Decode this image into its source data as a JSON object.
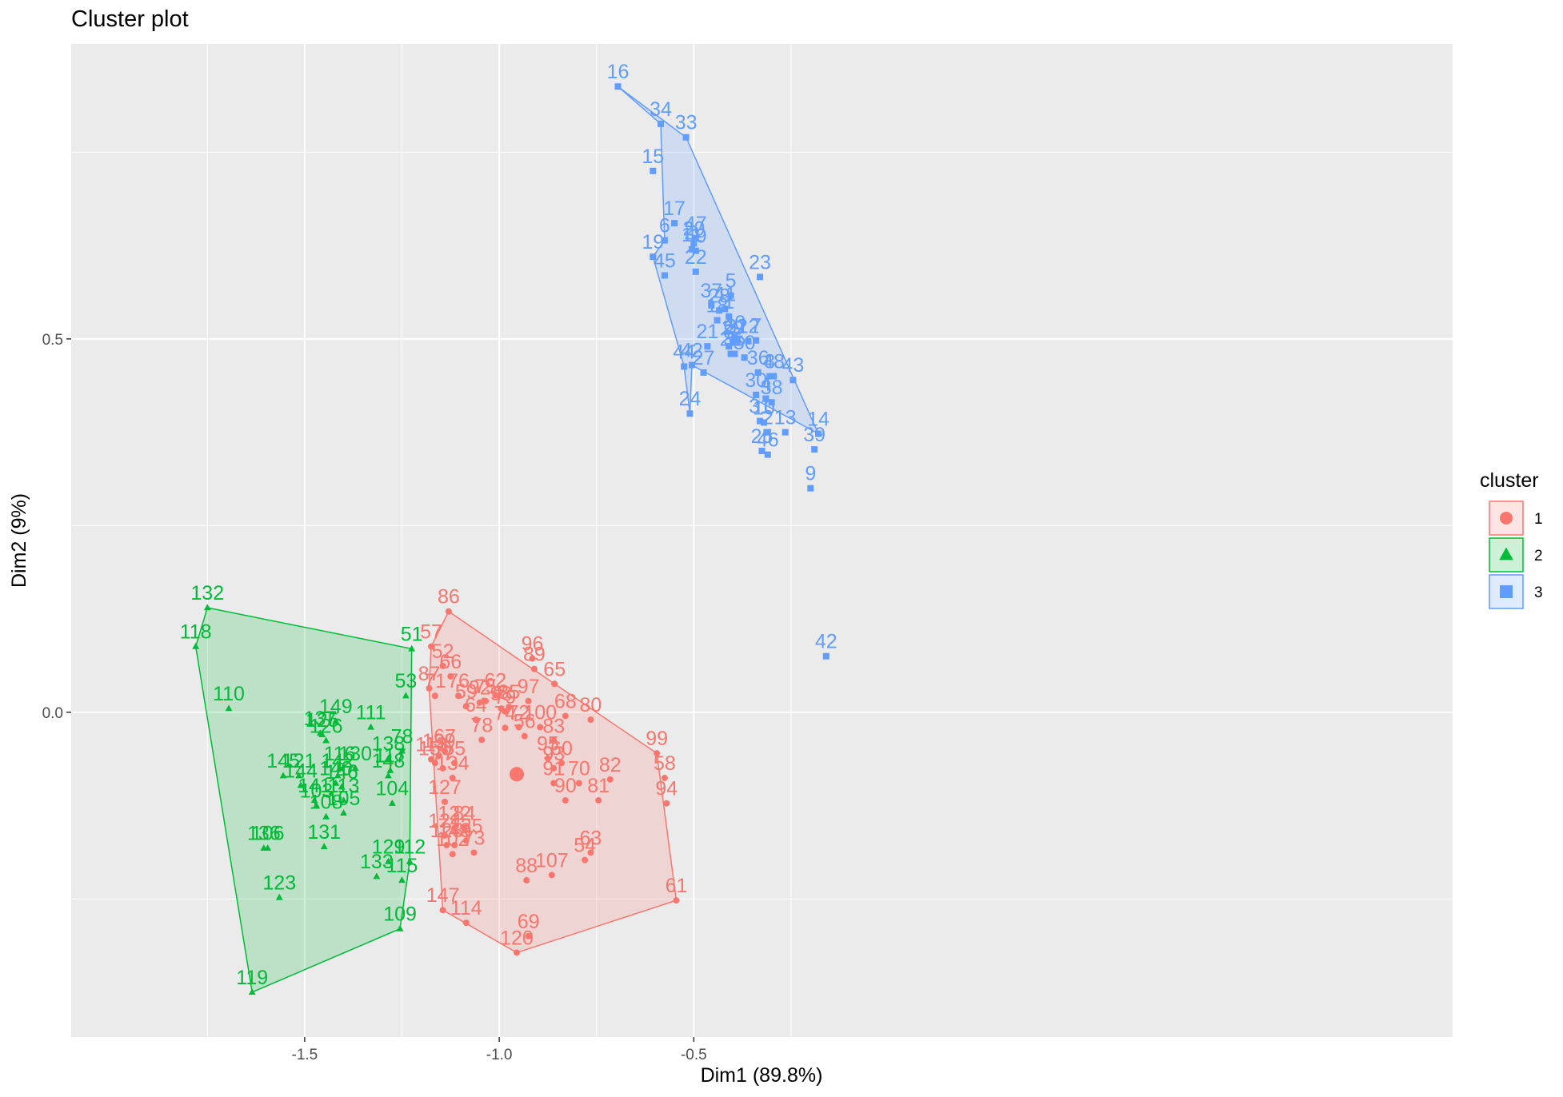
{
  "chart_data": {
    "type": "scatter",
    "title": "Cluster plot",
    "xlabel": "Dim1 (89.8%)",
    "ylabel": "Dim2 (9%)",
    "xlim": [
      -2.1,
      1.45
    ],
    "ylim": [
      -0.435,
      0.895
    ],
    "xticks": [
      -1.5,
      -1.0,
      -0.5
    ],
    "xtick_labels": [
      "-1.5",
      "-1.0",
      "-0.5"
    ],
    "yticks": [
      0.5,
      0.0
    ],
    "ytick_labels": [
      "0.5",
      "0.0"
    ],
    "grid": true,
    "legend": {
      "title": "cluster",
      "position": "right",
      "entries": [
        "1",
        "2",
        "3"
      ]
    },
    "colors": {
      "1": "#F8766D",
      "2": "#00BA38",
      "3": "#619CFF",
      "panel": "#EBEBEB",
      "grid": "#FFFFFF"
    },
    "series": [
      {
        "name": "1",
        "marker": "circle",
        "centroid": [
          -0.955,
          -0.083
        ],
        "hull": [
          "86",
          "57",
          "87",
          "147",
          "120",
          "61",
          "99",
          "65"
        ],
        "points": [
          {
            "label": "86",
            "x": -1.13,
            "y": 0.135
          },
          {
            "label": "57",
            "x": -1.175,
            "y": 0.088
          },
          {
            "label": "52",
            "x": -1.145,
            "y": 0.062
          },
          {
            "label": "66",
            "x": -1.125,
            "y": 0.048
          },
          {
            "label": "87",
            "x": -1.18,
            "y": 0.032
          },
          {
            "label": "71",
            "x": -1.165,
            "y": 0.022
          },
          {
            "label": "76",
            "x": -1.105,
            "y": 0.022
          },
          {
            "label": "59",
            "x": -1.085,
            "y": 0.008
          },
          {
            "label": "92",
            "x": -1.05,
            "y": 0.013
          },
          {
            "label": "62",
            "x": -1.01,
            "y": 0.023
          },
          {
            "label": "75",
            "x": -1.035,
            "y": 0.015
          },
          {
            "label": "98",
            "x": -0.995,
            "y": 0.005
          },
          {
            "label": "79",
            "x": -0.985,
            "y": 0.001
          },
          {
            "label": "85",
            "x": -0.975,
            "y": 0.007
          },
          {
            "label": "97",
            "x": -0.925,
            "y": 0.015
          },
          {
            "label": "96",
            "x": -0.915,
            "y": 0.072
          },
          {
            "label": "89",
            "x": -0.91,
            "y": 0.058
          },
          {
            "label": "65",
            "x": -0.858,
            "y": 0.038
          },
          {
            "label": "64",
            "x": -1.06,
            "y": -0.01
          },
          {
            "label": "74",
            "x": -0.985,
            "y": -0.021
          },
          {
            "label": "72",
            "x": -0.95,
            "y": -0.02
          },
          {
            "label": "56",
            "x": -0.935,
            "y": -0.032
          },
          {
            "label": "100",
            "x": -0.895,
            "y": -0.02
          },
          {
            "label": "83",
            "x": -0.86,
            "y": -0.038
          },
          {
            "label": "68",
            "x": -0.83,
            "y": -0.005
          },
          {
            "label": "80",
            "x": -0.765,
            "y": -0.01
          },
          {
            "label": "99",
            "x": -0.595,
            "y": -0.055
          },
          {
            "label": "58",
            "x": -0.575,
            "y": -0.088
          },
          {
            "label": "94",
            "x": -0.57,
            "y": -0.122
          },
          {
            "label": "61",
            "x": -0.545,
            "y": -0.252
          },
          {
            "label": "78",
            "x": -1.045,
            "y": -0.037
          },
          {
            "label": "67",
            "x": -1.14,
            "y": -0.052
          },
          {
            "label": "55",
            "x": -1.115,
            "y": -0.068
          },
          {
            "label": "118",
            "x": -1.175,
            "y": -0.063
          },
          {
            "label": "139",
            "x": -1.155,
            "y": -0.058
          },
          {
            "label": "150",
            "x": -1.165,
            "y": -0.068
          },
          {
            "label": "77",
            "x": -1.145,
            "y": -0.075
          },
          {
            "label": "134",
            "x": -1.12,
            "y": -0.088
          },
          {
            "label": "127",
            "x": -1.14,
            "y": -0.12
          },
          {
            "label": "84",
            "x": -1.09,
            "y": -0.155
          },
          {
            "label": "124",
            "x": -1.14,
            "y": -0.165
          },
          {
            "label": "122",
            "x": -1.115,
            "y": -0.155
          },
          {
            "label": "128",
            "x": -1.135,
            "y": -0.178
          },
          {
            "label": "102",
            "x": -1.12,
            "y": -0.19
          },
          {
            "label": "143",
            "x": -1.115,
            "y": -0.178
          },
          {
            "label": "135",
            "x": -1.085,
            "y": -0.172
          },
          {
            "label": "73",
            "x": -1.065,
            "y": -0.188
          },
          {
            "label": "95",
            "x": -0.875,
            "y": -0.062
          },
          {
            "label": "93",
            "x": -0.86,
            "y": -0.075
          },
          {
            "label": "91",
            "x": -0.86,
            "y": -0.095
          },
          {
            "label": "60",
            "x": -0.84,
            "y": -0.068
          },
          {
            "label": "90",
            "x": -0.83,
            "y": -0.118
          },
          {
            "label": "70",
            "x": -0.795,
            "y": -0.095
          },
          {
            "label": "81",
            "x": -0.745,
            "y": -0.118
          },
          {
            "label": "82",
            "x": -0.715,
            "y": -0.09
          },
          {
            "label": "88",
            "x": -0.93,
            "y": -0.225
          },
          {
            "label": "107",
            "x": -0.865,
            "y": -0.218
          },
          {
            "label": "54",
            "x": -0.78,
            "y": -0.198
          },
          {
            "label": "63",
            "x": -0.765,
            "y": -0.188
          },
          {
            "label": "147",
            "x": -1.145,
            "y": -0.265
          },
          {
            "label": "114",
            "x": -1.085,
            "y": -0.282
          },
          {
            "label": "69",
            "x": -0.925,
            "y": -0.3
          },
          {
            "label": "120",
            "x": -0.955,
            "y": -0.322
          }
        ]
      },
      {
        "name": "2",
        "marker": "triangle",
        "hull": [
          "132",
          "118",
          "119",
          "109",
          "112",
          "51"
        ],
        "points": [
          {
            "label": "132",
            "x": -1.75,
            "y": 0.14
          },
          {
            "label": "118",
            "x": -1.78,
            "y": 0.088
          },
          {
            "label": "110",
            "x": -1.695,
            "y": 0.005
          },
          {
            "label": "51",
            "x": -1.225,
            "y": 0.085
          },
          {
            "label": "53",
            "x": -1.24,
            "y": 0.022
          },
          {
            "label": "78",
            "x": -1.25,
            "y": -0.052
          },
          {
            "label": "111",
            "x": -1.33,
            "y": -0.02
          },
          {
            "label": "138",
            "x": -1.285,
            "y": -0.062
          },
          {
            "label": "117",
            "x": -1.28,
            "y": -0.078
          },
          {
            "label": "148",
            "x": -1.285,
            "y": -0.085
          },
          {
            "label": "104",
            "x": -1.275,
            "y": -0.122
          },
          {
            "label": "149",
            "x": -1.42,
            "y": -0.012
          },
          {
            "label": "137",
            "x": -1.46,
            "y": -0.028
          },
          {
            "label": "125",
            "x": -1.455,
            "y": -0.03
          },
          {
            "label": "126",
            "x": -1.445,
            "y": -0.038
          },
          {
            "label": "116",
            "x": -1.41,
            "y": -0.075
          },
          {
            "label": "130",
            "x": -1.37,
            "y": -0.075
          },
          {
            "label": "142",
            "x": -1.415,
            "y": -0.085
          },
          {
            "label": "140",
            "x": -1.42,
            "y": -0.095
          },
          {
            "label": "146",
            "x": -1.405,
            "y": -0.1
          },
          {
            "label": "113",
            "x": -1.4,
            "y": -0.118
          },
          {
            "label": "145",
            "x": -1.555,
            "y": -0.085
          },
          {
            "label": "121",
            "x": -1.515,
            "y": -0.085
          },
          {
            "label": "144",
            "x": -1.51,
            "y": -0.098
          },
          {
            "label": "141",
            "x": -1.475,
            "y": -0.118
          },
          {
            "label": "103",
            "x": -1.47,
            "y": -0.125
          },
          {
            "label": "108",
            "x": -1.445,
            "y": -0.14
          },
          {
            "label": "105",
            "x": -1.4,
            "y": -0.135
          },
          {
            "label": "131",
            "x": -1.45,
            "y": -0.18
          },
          {
            "label": "106",
            "x": -1.595,
            "y": -0.182
          },
          {
            "label": "136",
            "x": -1.605,
            "y": -0.182
          },
          {
            "label": "123",
            "x": -1.565,
            "y": -0.248
          },
          {
            "label": "133",
            "x": -1.315,
            "y": -0.22
          },
          {
            "label": "129",
            "x": -1.285,
            "y": -0.2
          },
          {
            "label": "112",
            "x": -1.23,
            "y": -0.2
          },
          {
            "label": "115",
            "x": -1.25,
            "y": -0.225
          },
          {
            "label": "109",
            "x": -1.255,
            "y": -0.29
          },
          {
            "label": "119",
            "x": -1.635,
            "y": -0.375
          }
        ]
      },
      {
        "name": "3",
        "marker": "square",
        "hull": [
          "16",
          "33",
          "14",
          "42",
          "24",
          "44",
          "19",
          "6",
          "34"
        ],
        "points": [
          {
            "label": "16",
            "x": -0.695,
            "y": 0.838
          },
          {
            "label": "34",
            "x": -0.585,
            "y": 0.788
          },
          {
            "label": "33",
            "x": -0.52,
            "y": 0.77
          },
          {
            "label": "15",
            "x": -0.605,
            "y": 0.725
          },
          {
            "label": "17",
            "x": -0.55,
            "y": 0.655
          },
          {
            "label": "6",
            "x": -0.575,
            "y": 0.632
          },
          {
            "label": "20",
            "x": -0.5,
            "y": 0.628
          },
          {
            "label": "47",
            "x": -0.495,
            "y": 0.635
          },
          {
            "label": "11",
            "x": -0.505,
            "y": 0.62
          },
          {
            "label": "49",
            "x": -0.495,
            "y": 0.618
          },
          {
            "label": "19",
            "x": -0.605,
            "y": 0.61
          },
          {
            "label": "45",
            "x": -0.575,
            "y": 0.585
          },
          {
            "label": "22",
            "x": -0.495,
            "y": 0.59
          },
          {
            "label": "23",
            "x": -0.33,
            "y": 0.583
          },
          {
            "label": "5",
            "x": -0.405,
            "y": 0.558
          },
          {
            "label": "37",
            "x": -0.455,
            "y": 0.545
          },
          {
            "label": "28",
            "x": -0.435,
            "y": 0.538
          },
          {
            "label": "41",
            "x": -0.42,
            "y": 0.54
          },
          {
            "label": "18",
            "x": -0.44,
            "y": 0.525
          },
          {
            "label": "1",
            "x": -0.41,
            "y": 0.53
          },
          {
            "label": "21",
            "x": -0.465,
            "y": 0.49
          },
          {
            "label": "40",
            "x": -0.395,
            "y": 0.502
          },
          {
            "label": "8",
            "x": -0.41,
            "y": 0.49
          },
          {
            "label": "29",
            "x": -0.4,
            "y": 0.495
          },
          {
            "label": "32",
            "x": -0.39,
            "y": 0.497
          },
          {
            "label": "12",
            "x": -0.36,
            "y": 0.497
          },
          {
            "label": "7",
            "x": -0.34,
            "y": 0.498
          },
          {
            "label": "26",
            "x": -0.405,
            "y": 0.48
          },
          {
            "label": "35",
            "x": -0.395,
            "y": 0.48
          },
          {
            "label": "50",
            "x": -0.37,
            "y": 0.475
          },
          {
            "label": "44",
            "x": -0.525,
            "y": 0.463
          },
          {
            "label": "42",
            "x": -0.505,
            "y": 0.465
          },
          {
            "label": "27",
            "x": -0.475,
            "y": 0.455
          },
          {
            "label": "36",
            "x": -0.335,
            "y": 0.455
          },
          {
            "label": "3",
            "x": -0.305,
            "y": 0.45
          },
          {
            "label": "48",
            "x": -0.295,
            "y": 0.45
          },
          {
            "label": "43",
            "x": -0.245,
            "y": 0.445
          },
          {
            "label": "30",
            "x": -0.34,
            "y": 0.425
          },
          {
            "label": "4",
            "x": -0.315,
            "y": 0.42
          },
          {
            "label": "38",
            "x": -0.3,
            "y": 0.415
          },
          {
            "label": "24",
            "x": -0.51,
            "y": 0.4
          },
          {
            "label": "31",
            "x": -0.33,
            "y": 0.39
          },
          {
            "label": "10",
            "x": -0.32,
            "y": 0.388
          },
          {
            "label": "13",
            "x": -0.265,
            "y": 0.375
          },
          {
            "label": "2",
            "x": -0.31,
            "y": 0.375
          },
          {
            "label": "39",
            "x": -0.19,
            "y": 0.352
          },
          {
            "label": "46",
            "x": -0.31,
            "y": 0.345
          },
          {
            "label": "25",
            "x": -0.325,
            "y": 0.35
          },
          {
            "label": "9",
            "x": -0.2,
            "y": 0.3
          },
          {
            "label": "14",
            "x": -0.18,
            "y": 0.373
          },
          {
            "label": "42b",
            "display": "42",
            "x": -0.16,
            "y": 0.075
          }
        ]
      }
    ]
  }
}
